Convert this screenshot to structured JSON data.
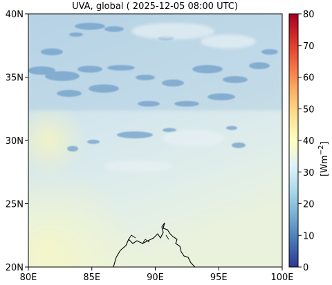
{
  "title": "UVA, global ( 2025-12-05 08:00 UTC)",
  "map": {
    "lon_ticks": [
      "80E",
      "85E",
      "90E",
      "95E",
      "100E"
    ],
    "lat_ticks": [
      "40N",
      "35N",
      "30N",
      "25N",
      "20N"
    ],
    "lon_range": [
      80,
      100
    ],
    "lat_range": [
      20,
      40
    ]
  },
  "colorbar": {
    "ticks": [
      "80",
      "70",
      "60",
      "50",
      "40",
      "30",
      "20",
      "10",
      "0"
    ],
    "range": [
      0,
      80
    ],
    "unit_label": "[Wm",
    "unit_exp": "−2",
    "unit_close": "]",
    "colormap": "RdYlBu_r",
    "colors": [
      "#313695",
      "#4575b4",
      "#74add1",
      "#abd9e9",
      "#e0f3f8",
      "#ffffbf",
      "#fee090",
      "#fdae61",
      "#f46d43",
      "#d73027",
      "#a50026"
    ]
  },
  "field_level": 28
}
